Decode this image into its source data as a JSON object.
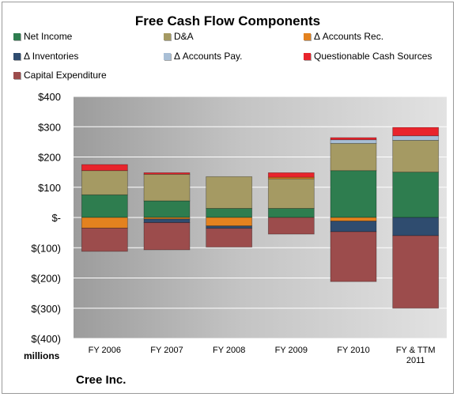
{
  "chart_data": {
    "type": "bar",
    "stacked": true,
    "title": "Free Cash Flow Components",
    "ylabel": "millions",
    "ylim": [
      -400,
      400
    ],
    "yticks": [
      400,
      300,
      200,
      100,
      0,
      -100,
      -200,
      -300,
      -400
    ],
    "ytick_labels": [
      "$400",
      "$300",
      "$200",
      "$100",
      "$-",
      "$(100)",
      "$(200)",
      "$(300)",
      "$(400)"
    ],
    "categories": [
      "FY 2006",
      "FY 2007",
      "FY 2008",
      "FY 2009",
      "FY 2010",
      "FY & TTM 2011"
    ],
    "legend_position": "top",
    "grid": true,
    "series": [
      {
        "name": "Net Income",
        "color": "#2e7d4f",
        "values": [
          75,
          55,
          30,
          30,
          155,
          150
        ]
      },
      {
        "name": "D&A",
        "color": "#a59a63",
        "values": [
          80,
          88,
          105,
          98,
          90,
          105
        ]
      },
      {
        "name": "Δ Accounts Rec.",
        "color": "#e3821f",
        "values": [
          -35,
          -5,
          -28,
          5,
          -12,
          0
        ]
      },
      {
        "name": "Δ Inventories",
        "color": "#2f4c6f",
        "values": [
          0,
          -12,
          -8,
          0,
          -35,
          -60
        ]
      },
      {
        "name": "Δ Accounts Pay.",
        "color": "#a9bfd6",
        "values": [
          0,
          0,
          0,
          0,
          12,
          15
        ]
      },
      {
        "name": "Questionable Cash Sources",
        "color": "#e8242c",
        "values": [
          20,
          5,
          0,
          15,
          7,
          28
        ]
      },
      {
        "name": "Capital Expenditure",
        "color": "#9c4c4c",
        "values": [
          -77,
          -90,
          -62,
          -55,
          -165,
          -240
        ]
      }
    ]
  },
  "footer": "Cree Inc."
}
